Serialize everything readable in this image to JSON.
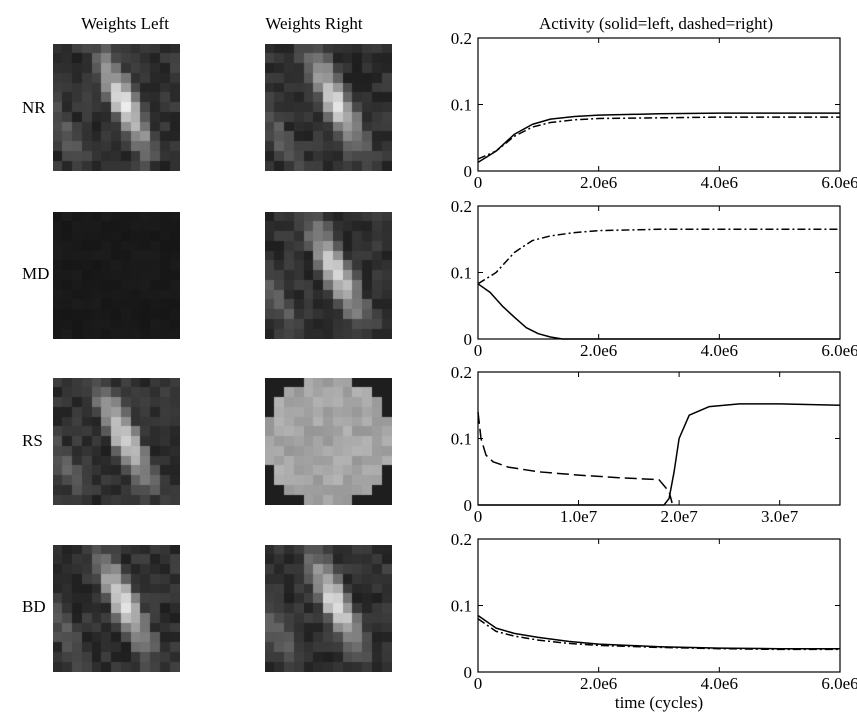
{
  "titles": {
    "weights_left": "Weights Left",
    "weights_right": "Weights Right",
    "activity": "Activity (solid=left, dashed=right)"
  },
  "rows": [
    {
      "label": "NR",
      "left_weights": "oriented-stripes",
      "right_weights": "oriented-stripes"
    },
    {
      "label": "MD",
      "left_weights": "blank",
      "right_weights": "oriented-stripes"
    },
    {
      "label": "RS",
      "left_weights": "oriented-stripes",
      "right_weights": "uniform-disk"
    },
    {
      "label": "BD",
      "left_weights": "oriented-stripes",
      "right_weights": "oriented-stripes"
    }
  ],
  "chart_data": [
    {
      "type": "line",
      "row": "NR",
      "ylim": [
        0,
        0.2
      ],
      "yticks": [
        "0",
        "0.1",
        "0.2"
      ],
      "xlim": [
        0,
        6000000
      ],
      "xticks": [
        {
          "v": 0,
          "t": "0"
        },
        {
          "v": 2000000,
          "t": "2.0e6"
        },
        {
          "v": 4000000,
          "t": "4.0e6"
        },
        {
          "v": 6000000,
          "t": "6.0e6"
        }
      ],
      "xlabel": "",
      "series": [
        {
          "style": "solid",
          "x": [
            0,
            300000,
            600000,
            900000,
            1200000,
            1600000,
            2000000,
            3000000,
            4000000,
            5000000,
            6000000
          ],
          "y": [
            0.013,
            0.03,
            0.055,
            0.07,
            0.078,
            0.082,
            0.084,
            0.086,
            0.087,
            0.087,
            0.087
          ]
        },
        {
          "style": "dashdot",
          "x": [
            0,
            300000,
            600000,
            900000,
            1200000,
            1600000,
            2000000,
            3000000,
            4000000,
            5000000,
            6000000
          ],
          "y": [
            0.018,
            0.03,
            0.052,
            0.066,
            0.073,
            0.077,
            0.079,
            0.08,
            0.081,
            0.081,
            0.081
          ]
        }
      ]
    },
    {
      "type": "line",
      "row": "MD",
      "ylim": [
        0,
        0.2
      ],
      "yticks": [
        "0",
        "0.1",
        "0.2"
      ],
      "xlim": [
        0,
        6000000
      ],
      "xticks": [
        {
          "v": 0,
          "t": "0"
        },
        {
          "v": 2000000,
          "t": "2.0e6"
        },
        {
          "v": 4000000,
          "t": "4.0e6"
        },
        {
          "v": 6000000,
          "t": "6.0e6"
        }
      ],
      "xlabel": "",
      "series": [
        {
          "style": "solid",
          "x": [
            0,
            200000,
            400000,
            600000,
            800000,
            1000000,
            1200000,
            1400000,
            2000000,
            4000000,
            6000000
          ],
          "y": [
            0.083,
            0.07,
            0.05,
            0.033,
            0.017,
            0.008,
            0.003,
            0.0,
            0.0,
            0.0,
            0.0
          ]
        },
        {
          "style": "dashdot",
          "x": [
            0,
            300000,
            600000,
            900000,
            1200000,
            1600000,
            2000000,
            3000000,
            4000000,
            5000000,
            6000000
          ],
          "y": [
            0.083,
            0.1,
            0.13,
            0.148,
            0.155,
            0.16,
            0.163,
            0.165,
            0.165,
            0.165,
            0.165
          ]
        }
      ]
    },
    {
      "type": "line",
      "row": "RS",
      "ylim": [
        0,
        0.2
      ],
      "yticks": [
        "0",
        "0.1",
        "0.2"
      ],
      "xlim": [
        0,
        36000000
      ],
      "xticks": [
        {
          "v": 0,
          "t": "0"
        },
        {
          "v": 10000000,
          "t": "1.0e7"
        },
        {
          "v": 20000000,
          "t": "2.0e7"
        },
        {
          "v": 30000000,
          "t": "3.0e7"
        }
      ],
      "xlabel": "",
      "series": [
        {
          "style": "solid",
          "x": [
            0,
            5000000,
            10000000,
            15000000,
            18500000,
            19000000,
            19500000,
            20000000,
            21000000,
            23000000,
            26000000,
            30000000,
            36000000
          ],
          "y": [
            0.0,
            0.0,
            0.0,
            0.0,
            0.0,
            0.01,
            0.05,
            0.1,
            0.135,
            0.148,
            0.152,
            0.152,
            0.15
          ]
        },
        {
          "style": "dashed",
          "x": [
            0,
            300000,
            800000,
            1500000,
            3000000,
            6000000,
            10000000,
            14000000,
            18000000,
            19000000,
            19300000
          ],
          "y": [
            0.14,
            0.1,
            0.075,
            0.065,
            0.057,
            0.05,
            0.045,
            0.041,
            0.038,
            0.02,
            0.003
          ]
        }
      ]
    },
    {
      "type": "line",
      "row": "BD",
      "ylim": [
        0,
        0.2
      ],
      "yticks": [
        "0",
        "0.1",
        "0.2"
      ],
      "xlim": [
        0,
        6000000
      ],
      "xticks": [
        {
          "v": 0,
          "t": "0"
        },
        {
          "v": 2000000,
          "t": "2.0e6"
        },
        {
          "v": 4000000,
          "t": "4.0e6"
        },
        {
          "v": 6000000,
          "t": "6.0e6"
        }
      ],
      "xlabel": "time (cycles)",
      "series": [
        {
          "style": "solid",
          "x": [
            0,
            300000,
            600000,
            1000000,
            1500000,
            2000000,
            3000000,
            4000000,
            5000000,
            6000000
          ],
          "y": [
            0.085,
            0.066,
            0.058,
            0.052,
            0.046,
            0.042,
            0.038,
            0.036,
            0.035,
            0.035
          ]
        },
        {
          "style": "dashdot",
          "x": [
            0,
            300000,
            600000,
            1000000,
            1500000,
            2000000,
            3000000,
            4000000,
            5000000,
            6000000
          ],
          "y": [
            0.08,
            0.061,
            0.054,
            0.048,
            0.043,
            0.04,
            0.037,
            0.035,
            0.034,
            0.034
          ]
        }
      ]
    }
  ]
}
